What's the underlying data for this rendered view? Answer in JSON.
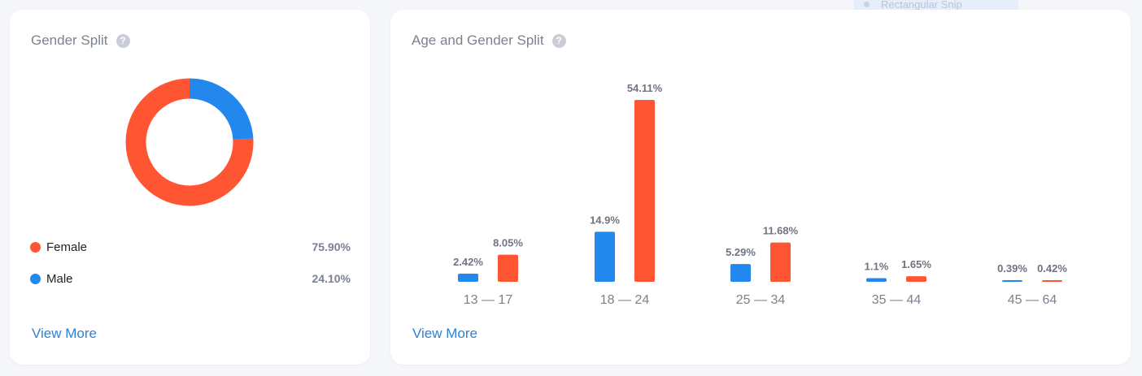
{
  "background_label": "Rectangular Snip",
  "gender_card": {
    "title": "Gender Split",
    "help_icon": "?",
    "view_more": "View More",
    "legend": [
      {
        "label": "Female",
        "value": "75.90%",
        "color": "#ff5533"
      },
      {
        "label": "Male",
        "value": "24.10%",
        "color": "#2288ee"
      }
    ]
  },
  "age_card": {
    "title": "Age and Gender Split",
    "help_icon": "?",
    "view_more": "View More"
  },
  "chart_data": [
    {
      "type": "pie",
      "title": "Gender Split",
      "donut": true,
      "slices": [
        {
          "label": "Female",
          "value": 75.9,
          "color": "#ff5533"
        },
        {
          "label": "Male",
          "value": 24.1,
          "color": "#2288ee"
        }
      ]
    },
    {
      "type": "bar",
      "title": "Age and Gender Split",
      "categories": [
        "13 — 17",
        "18 — 24",
        "25 — 34",
        "35 — 44",
        "45 — 64"
      ],
      "series": [
        {
          "color": "#2288ee",
          "values": [
            2.42,
            14.9,
            5.29,
            1.1,
            0.39
          ],
          "labels": [
            "2.42%",
            "14.9%",
            "5.29%",
            "1.1%",
            "0.39%"
          ]
        },
        {
          "color": "#ff5533",
          "values": [
            8.05,
            54.11,
            11.68,
            1.65,
            0.42
          ],
          "labels": [
            "8.05%",
            "54.11%",
            "11.68%",
            "1.65%",
            "0.42%"
          ]
        }
      ],
      "ylim": [
        0,
        54.11
      ],
      "grid": false
    }
  ]
}
